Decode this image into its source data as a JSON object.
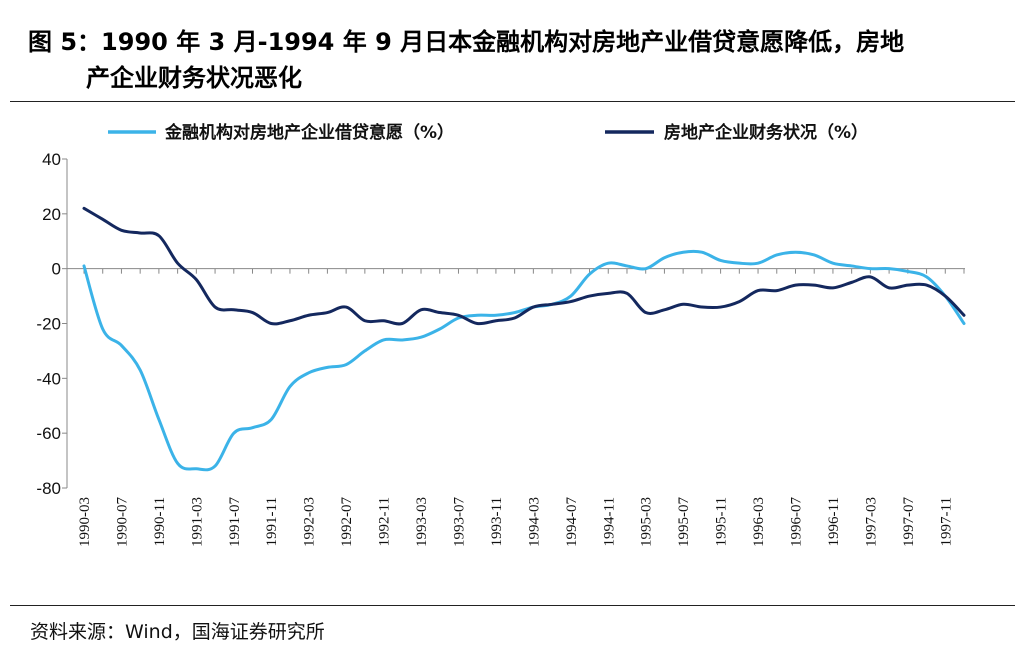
{
  "title": {
    "line1": "图 5：1990 年 3 月-1994 年 9 月日本金融机构对房地产业借贷意愿降低，房地",
    "line2": "产企业财务状况恶化"
  },
  "source": "资料来源：Wind，国海证券研究所",
  "colors": {
    "lending": "#3bb3e8",
    "finance": "#14285e",
    "axis": "#888888",
    "text": "#111111"
  },
  "chart_data": {
    "type": "line",
    "title": "",
    "xlabel": "",
    "ylabel": "",
    "ylim": [
      -80,
      40
    ],
    "yticks": [
      40,
      20,
      0,
      -20,
      -40,
      -60,
      -80
    ],
    "grid": false,
    "legend": "top",
    "x": [
      "1990-03",
      "1990-05",
      "1990-07",
      "1990-09",
      "1990-11",
      "1991-01",
      "1991-03",
      "1991-05",
      "1991-07",
      "1991-09",
      "1991-11",
      "1992-01",
      "1992-03",
      "1992-05",
      "1992-07",
      "1992-09",
      "1992-11",
      "1993-01",
      "1993-03",
      "1993-05",
      "1993-07",
      "1993-09",
      "1993-11",
      "1994-01",
      "1994-03",
      "1994-05",
      "1994-07",
      "1994-09",
      "1994-11",
      "1995-01",
      "1995-03",
      "1995-05",
      "1995-07",
      "1995-09",
      "1995-11",
      "1996-01",
      "1996-03",
      "1996-05",
      "1996-07",
      "1996-09",
      "1996-11",
      "1997-01",
      "1997-03",
      "1997-05",
      "1997-07",
      "1997-09",
      "1997-11",
      "1998-01"
    ],
    "xtick_labels": [
      "1990-03",
      "1990-07",
      "1990-11",
      "1991-03",
      "1991-07",
      "1991-11",
      "1992-03",
      "1992-07",
      "1992-11",
      "1993-03",
      "1993-07",
      "1993-11",
      "1994-03",
      "1994-07",
      "1994-11",
      "1995-03",
      "1995-07",
      "1995-11",
      "1996-03",
      "1996-07",
      "1996-11",
      "1997-03",
      "1997-07",
      "1997-11"
    ],
    "series": [
      {
        "name": "金融机构对房地产企业借贷意愿（%）",
        "values": [
          1,
          -22,
          -28,
          -37,
          -55,
          -71,
          -73,
          -72,
          -60,
          -58,
          -55,
          -43,
          -38,
          -36,
          -35,
          -30,
          -26,
          -26,
          -25,
          -22,
          -18,
          -17,
          -17,
          -16,
          -14,
          -13,
          -10,
          -2,
          2,
          1,
          0,
          4,
          6,
          6,
          3,
          2,
          2,
          5,
          6,
          5,
          2,
          1,
          0,
          0,
          -1,
          -3,
          -10,
          -20
        ]
      },
      {
        "name": "房地产企业财务状况（%）",
        "values": [
          22,
          18,
          14,
          13,
          12,
          2,
          -4,
          -14,
          -15,
          -16,
          -20,
          -19,
          -17,
          -16,
          -14,
          -19,
          -19,
          -20,
          -15,
          -16,
          -17,
          -20,
          -19,
          -18,
          -14,
          -13,
          -12,
          -10,
          -9,
          -9,
          -16,
          -15,
          -13,
          -14,
          -14,
          -12,
          -8,
          -8,
          -6,
          -6,
          -7,
          -5,
          -3,
          -7,
          -6,
          -6,
          -10,
          -17
        ]
      }
    ]
  }
}
